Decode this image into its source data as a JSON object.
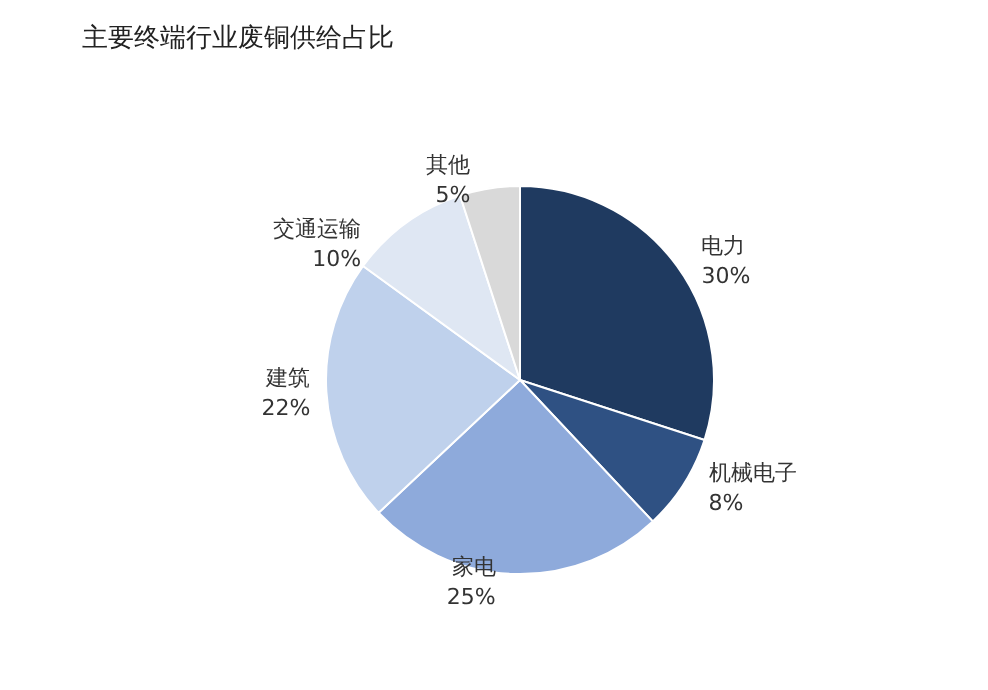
{
  "chart_data": {
    "type": "pie",
    "title": "主要终端行业废铜供给占比",
    "categories": [
      "电力",
      "机械电子",
      "家电",
      "建筑",
      "交通运输",
      "其他"
    ],
    "values": [
      30,
      8,
      25,
      22,
      10,
      5
    ],
    "value_labels": [
      "30%",
      "8%",
      "25%",
      "22%",
      "10%",
      "5%"
    ],
    "colors": [
      "#1f3a60",
      "#2f5183",
      "#8eaadb",
      "#bfd1ec",
      "#dfe7f3",
      "#d9d9d9"
    ],
    "legend": false
  }
}
